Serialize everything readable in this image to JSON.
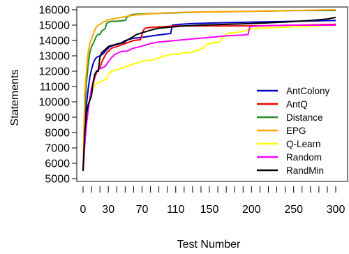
{
  "chart_data": {
    "type": "line",
    "title": "",
    "xlabel": "Test Number",
    "ylabel": "Statements",
    "xlim": [
      0,
      300
    ],
    "ylim": [
      5500,
      16000
    ],
    "x_tick_values": [
      0,
      10,
      20,
      30,
      40,
      50,
      60,
      70,
      80,
      90,
      100,
      110,
      120,
      130,
      140,
      150,
      160,
      170,
      180,
      190,
      200,
      210,
      220,
      230,
      240,
      250,
      260,
      270,
      280,
      290,
      300
    ],
    "x_tick_labels": [
      {
        "value": 0,
        "label": "0"
      },
      {
        "value": 30,
        "label": "30"
      },
      {
        "value": 70,
        "label": "70"
      },
      {
        "value": 110,
        "label": "110"
      },
      {
        "value": 150,
        "label": "150"
      },
      {
        "value": 200,
        "label": "200"
      },
      {
        "value": 250,
        "label": "250"
      },
      {
        "value": 300,
        "label": "300"
      }
    ],
    "y_ticks": [
      {
        "value": 5000,
        "label": "5000"
      },
      {
        "value": 6000,
        "label": "6000"
      },
      {
        "value": 7000,
        "label": "7000"
      },
      {
        "value": 8000,
        "label": "8000"
      },
      {
        "value": 9000,
        "label": "9000"
      },
      {
        "value": 10000,
        "label": "10000"
      },
      {
        "value": 11000,
        "label": "11000"
      },
      {
        "value": 12000,
        "label": "12000"
      },
      {
        "value": 13000,
        "label": "13000"
      },
      {
        "value": 14000,
        "label": "14000"
      },
      {
        "value": 15000,
        "label": "15000"
      },
      {
        "value": 16000,
        "label": "16000"
      }
    ],
    "grid": false,
    "legend_position": "bottom-right",
    "series": [
      {
        "name": "AntColony",
        "color": "#0000cc",
        "points": [
          [
            0,
            5500
          ],
          [
            2,
            8200
          ],
          [
            4,
            9800
          ],
          [
            6,
            10800
          ],
          [
            8,
            11600
          ],
          [
            10,
            12100
          ],
          [
            12,
            12500
          ],
          [
            14,
            12750
          ],
          [
            16,
            12900
          ],
          [
            18,
            12950
          ],
          [
            20,
            13000
          ],
          [
            24,
            13150
          ],
          [
            28,
            13400
          ],
          [
            32,
            13600
          ],
          [
            38,
            13700
          ],
          [
            44,
            13800
          ],
          [
            50,
            14000
          ],
          [
            60,
            14150
          ],
          [
            70,
            14200
          ],
          [
            82,
            14300
          ],
          [
            95,
            14400
          ],
          [
            104,
            14450
          ],
          [
            106,
            15000
          ],
          [
            115,
            15050
          ],
          [
            130,
            15100
          ],
          [
            160,
            15150
          ],
          [
            200,
            15200
          ],
          [
            250,
            15250
          ],
          [
            300,
            15300
          ]
        ]
      },
      {
        "name": "AntQ",
        "color": "#ee0000",
        "points": [
          [
            0,
            5500
          ],
          [
            2,
            7500
          ],
          [
            4,
            8800
          ],
          [
            6,
            9600
          ],
          [
            8,
            10200
          ],
          [
            10,
            10700
          ],
          [
            12,
            11200
          ],
          [
            14,
            11600
          ],
          [
            16,
            11900
          ],
          [
            18,
            12100
          ],
          [
            20,
            12200
          ],
          [
            22,
            12550
          ],
          [
            24,
            12800
          ],
          [
            26,
            13000
          ],
          [
            28,
            13200
          ],
          [
            30,
            13300
          ],
          [
            34,
            13500
          ],
          [
            40,
            13600
          ],
          [
            50,
            13800
          ],
          [
            60,
            14000
          ],
          [
            68,
            14050
          ],
          [
            70,
            14400
          ],
          [
            72,
            14700
          ],
          [
            74,
            14800
          ],
          [
            80,
            14850
          ],
          [
            95,
            14900
          ],
          [
            110,
            14950
          ],
          [
            140,
            14950
          ],
          [
            200,
            14950
          ],
          [
            250,
            15000
          ],
          [
            300,
            15050
          ]
        ]
      },
      {
        "name": "Distance",
        "color": "#228b22",
        "points": [
          [
            0,
            5500
          ],
          [
            2,
            9500
          ],
          [
            4,
            11200
          ],
          [
            6,
            12400
          ],
          [
            8,
            13200
          ],
          [
            10,
            13600
          ],
          [
            12,
            13800
          ],
          [
            14,
            14050
          ],
          [
            16,
            14300
          ],
          [
            18,
            14400
          ],
          [
            20,
            14400
          ],
          [
            22,
            14600
          ],
          [
            24,
            14700
          ],
          [
            26,
            14750
          ],
          [
            28,
            15100
          ],
          [
            30,
            15200
          ],
          [
            34,
            15250
          ],
          [
            40,
            15250
          ],
          [
            48,
            15300
          ],
          [
            50,
            15300
          ],
          [
            52,
            15500
          ],
          [
            56,
            15650
          ],
          [
            60,
            15700
          ],
          [
            80,
            15750
          ],
          [
            110,
            15800
          ],
          [
            140,
            15850
          ],
          [
            200,
            15900
          ],
          [
            250,
            15950
          ],
          [
            300,
            15950
          ]
        ]
      },
      {
        "name": "EPG",
        "color": "#ffa500",
        "points": [
          [
            0,
            5500
          ],
          [
            2,
            10500
          ],
          [
            4,
            12000
          ],
          [
            6,
            13200
          ],
          [
            8,
            13800
          ],
          [
            10,
            14100
          ],
          [
            12,
            14400
          ],
          [
            14,
            14700
          ],
          [
            16,
            14900
          ],
          [
            18,
            15000
          ],
          [
            20,
            15050
          ],
          [
            24,
            15200
          ],
          [
            28,
            15300
          ],
          [
            34,
            15400
          ],
          [
            40,
            15450
          ],
          [
            50,
            15550
          ],
          [
            60,
            15650
          ],
          [
            70,
            15700
          ],
          [
            85,
            15750
          ],
          [
            100,
            15800
          ],
          [
            130,
            15850
          ],
          [
            200,
            15900
          ],
          [
            300,
            16000
          ]
        ]
      },
      {
        "name": "Q-Learn",
        "color": "#ffff00",
        "points": [
          [
            0,
            5500
          ],
          [
            2,
            7700
          ],
          [
            4,
            9000
          ],
          [
            6,
            9800
          ],
          [
            8,
            10200
          ],
          [
            10,
            10600
          ],
          [
            12,
            10900
          ],
          [
            14,
            11100
          ],
          [
            16,
            11200
          ],
          [
            20,
            11300
          ],
          [
            24,
            11400
          ],
          [
            28,
            11500
          ],
          [
            30,
            11800
          ],
          [
            34,
            12000
          ],
          [
            40,
            12100
          ],
          [
            46,
            12200
          ],
          [
            52,
            12300
          ],
          [
            56,
            12400
          ],
          [
            62,
            12500
          ],
          [
            68,
            12600
          ],
          [
            74,
            12700
          ],
          [
            80,
            12700
          ],
          [
            86,
            12800
          ],
          [
            92,
            12900
          ],
          [
            98,
            13000
          ],
          [
            105,
            13100
          ],
          [
            112,
            13100
          ],
          [
            118,
            13200
          ],
          [
            126,
            13200
          ],
          [
            132,
            13300
          ],
          [
            138,
            13400
          ],
          [
            142,
            13500
          ],
          [
            146,
            13700
          ],
          [
            150,
            13800
          ],
          [
            156,
            13850
          ],
          [
            162,
            13900
          ],
          [
            166,
            14200
          ],
          [
            170,
            14400
          ],
          [
            174,
            14500
          ],
          [
            180,
            14500
          ],
          [
            184,
            14550
          ],
          [
            190,
            14600
          ],
          [
            196,
            14700
          ],
          [
            200,
            14750
          ],
          [
            206,
            14800
          ],
          [
            230,
            14850
          ],
          [
            260,
            14900
          ],
          [
            300,
            15000
          ]
        ]
      },
      {
        "name": "Random",
        "color": "#ff00ff",
        "points": [
          [
            0,
            5500
          ],
          [
            2,
            7200
          ],
          [
            4,
            8500
          ],
          [
            6,
            9400
          ],
          [
            8,
            10200
          ],
          [
            10,
            10900
          ],
          [
            12,
            11300
          ],
          [
            14,
            11700
          ],
          [
            16,
            12000
          ],
          [
            18,
            12100
          ],
          [
            22,
            12200
          ],
          [
            26,
            12300
          ],
          [
            30,
            12600
          ],
          [
            34,
            12900
          ],
          [
            38,
            13100
          ],
          [
            42,
            13200
          ],
          [
            46,
            13300
          ],
          [
            52,
            13300
          ],
          [
            56,
            13400
          ],
          [
            60,
            13500
          ],
          [
            68,
            13600
          ],
          [
            74,
            13700
          ],
          [
            80,
            13800
          ],
          [
            90,
            13900
          ],
          [
            100,
            13950
          ],
          [
            110,
            14000
          ],
          [
            130,
            14100
          ],
          [
            150,
            14200
          ],
          [
            170,
            14300
          ],
          [
            190,
            14350
          ],
          [
            196,
            14400
          ],
          [
            198,
            14900
          ],
          [
            210,
            14950
          ],
          [
            250,
            15000
          ],
          [
            300,
            15000
          ]
        ]
      },
      {
        "name": "RandMin",
        "color": "#000000",
        "points": [
          [
            0,
            5500
          ],
          [
            2,
            8000
          ],
          [
            4,
            9200
          ],
          [
            6,
            9800
          ],
          [
            8,
            10100
          ],
          [
            10,
            10400
          ],
          [
            12,
            11300
          ],
          [
            14,
            11800
          ],
          [
            16,
            12000
          ],
          [
            18,
            12000
          ],
          [
            20,
            12900
          ],
          [
            22,
            13200
          ],
          [
            24,
            13300
          ],
          [
            26,
            13400
          ],
          [
            28,
            13500
          ],
          [
            30,
            13600
          ],
          [
            32,
            13650
          ],
          [
            36,
            13700
          ],
          [
            42,
            13800
          ],
          [
            48,
            13850
          ],
          [
            52,
            14000
          ],
          [
            58,
            14200
          ],
          [
            64,
            14400
          ],
          [
            70,
            14500
          ],
          [
            76,
            14600
          ],
          [
            82,
            14700
          ],
          [
            90,
            14800
          ],
          [
            100,
            14850
          ],
          [
            110,
            14900
          ],
          [
            120,
            14950
          ],
          [
            140,
            15000
          ],
          [
            170,
            15050
          ],
          [
            200,
            15100
          ],
          [
            240,
            15200
          ],
          [
            270,
            15300
          ],
          [
            290,
            15400
          ],
          [
            300,
            15500
          ]
        ]
      }
    ]
  }
}
